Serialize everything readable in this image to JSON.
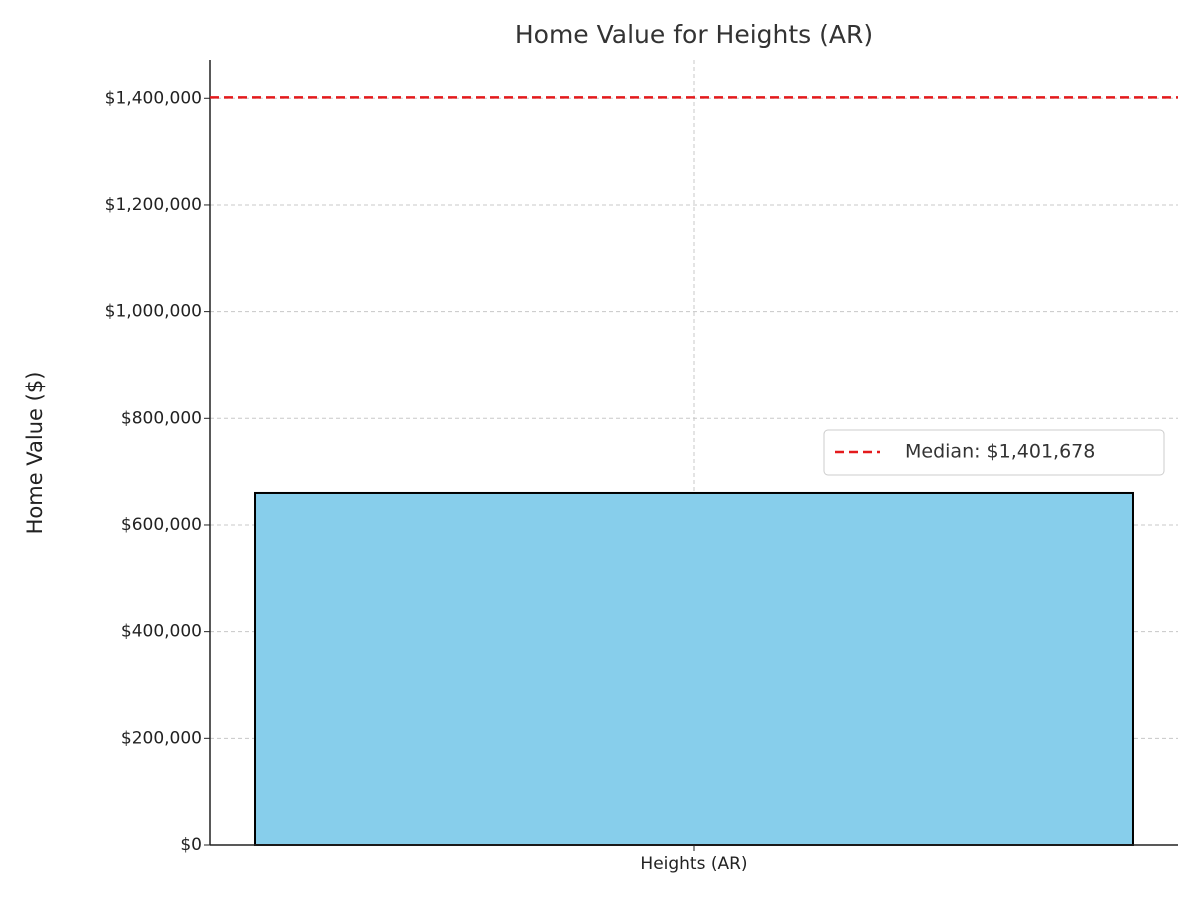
{
  "chart_data": {
    "type": "bar",
    "title": "Home Value for Heights (AR)",
    "y_label": "Home Value ($)",
    "categories": [
      "Heights (AR)"
    ],
    "values": [
      660000
    ],
    "color": "#87ceeb",
    "edgecolor": "#000000",
    "ylim": [
      0,
      1471762
    ],
    "yticks": [
      {
        "value": 0,
        "label": "$0"
      },
      {
        "value": 200000,
        "label": "$200,000"
      },
      {
        "value": 400000,
        "label": "$400,000"
      },
      {
        "value": 600000,
        "label": "$600,000"
      },
      {
        "value": 800000,
        "label": "$800,000"
      },
      {
        "value": 1000000,
        "label": "$1,000,000"
      },
      {
        "value": 1200000,
        "label": "$1,200,000"
      },
      {
        "value": 1400000,
        "label": "$1,400,000"
      }
    ],
    "grid": true,
    "median": {
      "value": 1401678,
      "label": "Median: $1,401,678",
      "color": "#e41a1c"
    },
    "legend_position": "center right"
  }
}
